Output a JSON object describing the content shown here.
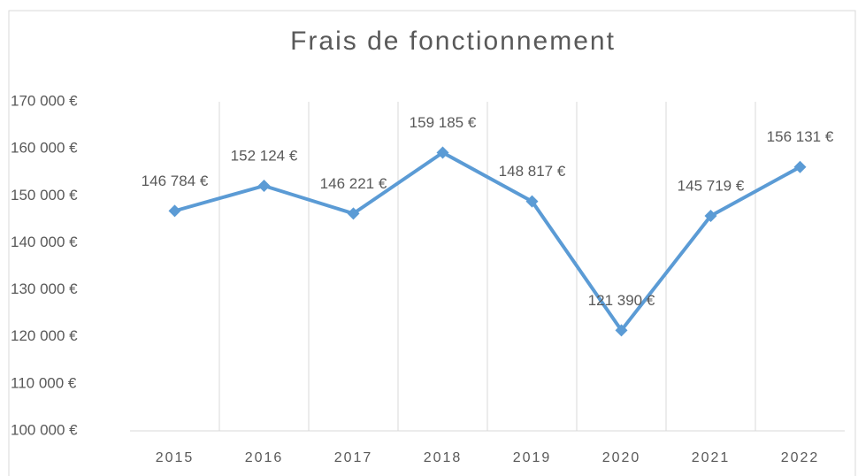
{
  "chart_data": {
    "type": "line",
    "title": "Frais de fonctionnement",
    "categories": [
      "2015",
      "2016",
      "2017",
      "2018",
      "2019",
      "2020",
      "2021",
      "2022"
    ],
    "series": [
      {
        "name": "Frais de fonctionnement",
        "color": "#5b9bd5",
        "values": [
          146784,
          152124,
          146221,
          159185,
          148817,
          121390,
          145719,
          156131
        ],
        "value_labels": [
          "146 784 €",
          "152 124 €",
          "146 221 €",
          "159 185 €",
          "148 817 €",
          "121 390 €",
          "145 719 €",
          "156 131 €"
        ]
      }
    ],
    "ylim": [
      100000,
      170000
    ],
    "yticks": [
      {
        "value": 100000,
        "label": "100 000 €"
      },
      {
        "value": 110000,
        "label": "110 000 €"
      },
      {
        "value": 120000,
        "label": "120 000 €"
      },
      {
        "value": 130000,
        "label": "130 000 €"
      },
      {
        "value": 140000,
        "label": "140 000 €"
      },
      {
        "value": 150000,
        "label": "150 000 €"
      },
      {
        "value": 160000,
        "label": "160 000 €"
      },
      {
        "value": 170000,
        "label": "170 000 €"
      }
    ],
    "grid": true
  }
}
